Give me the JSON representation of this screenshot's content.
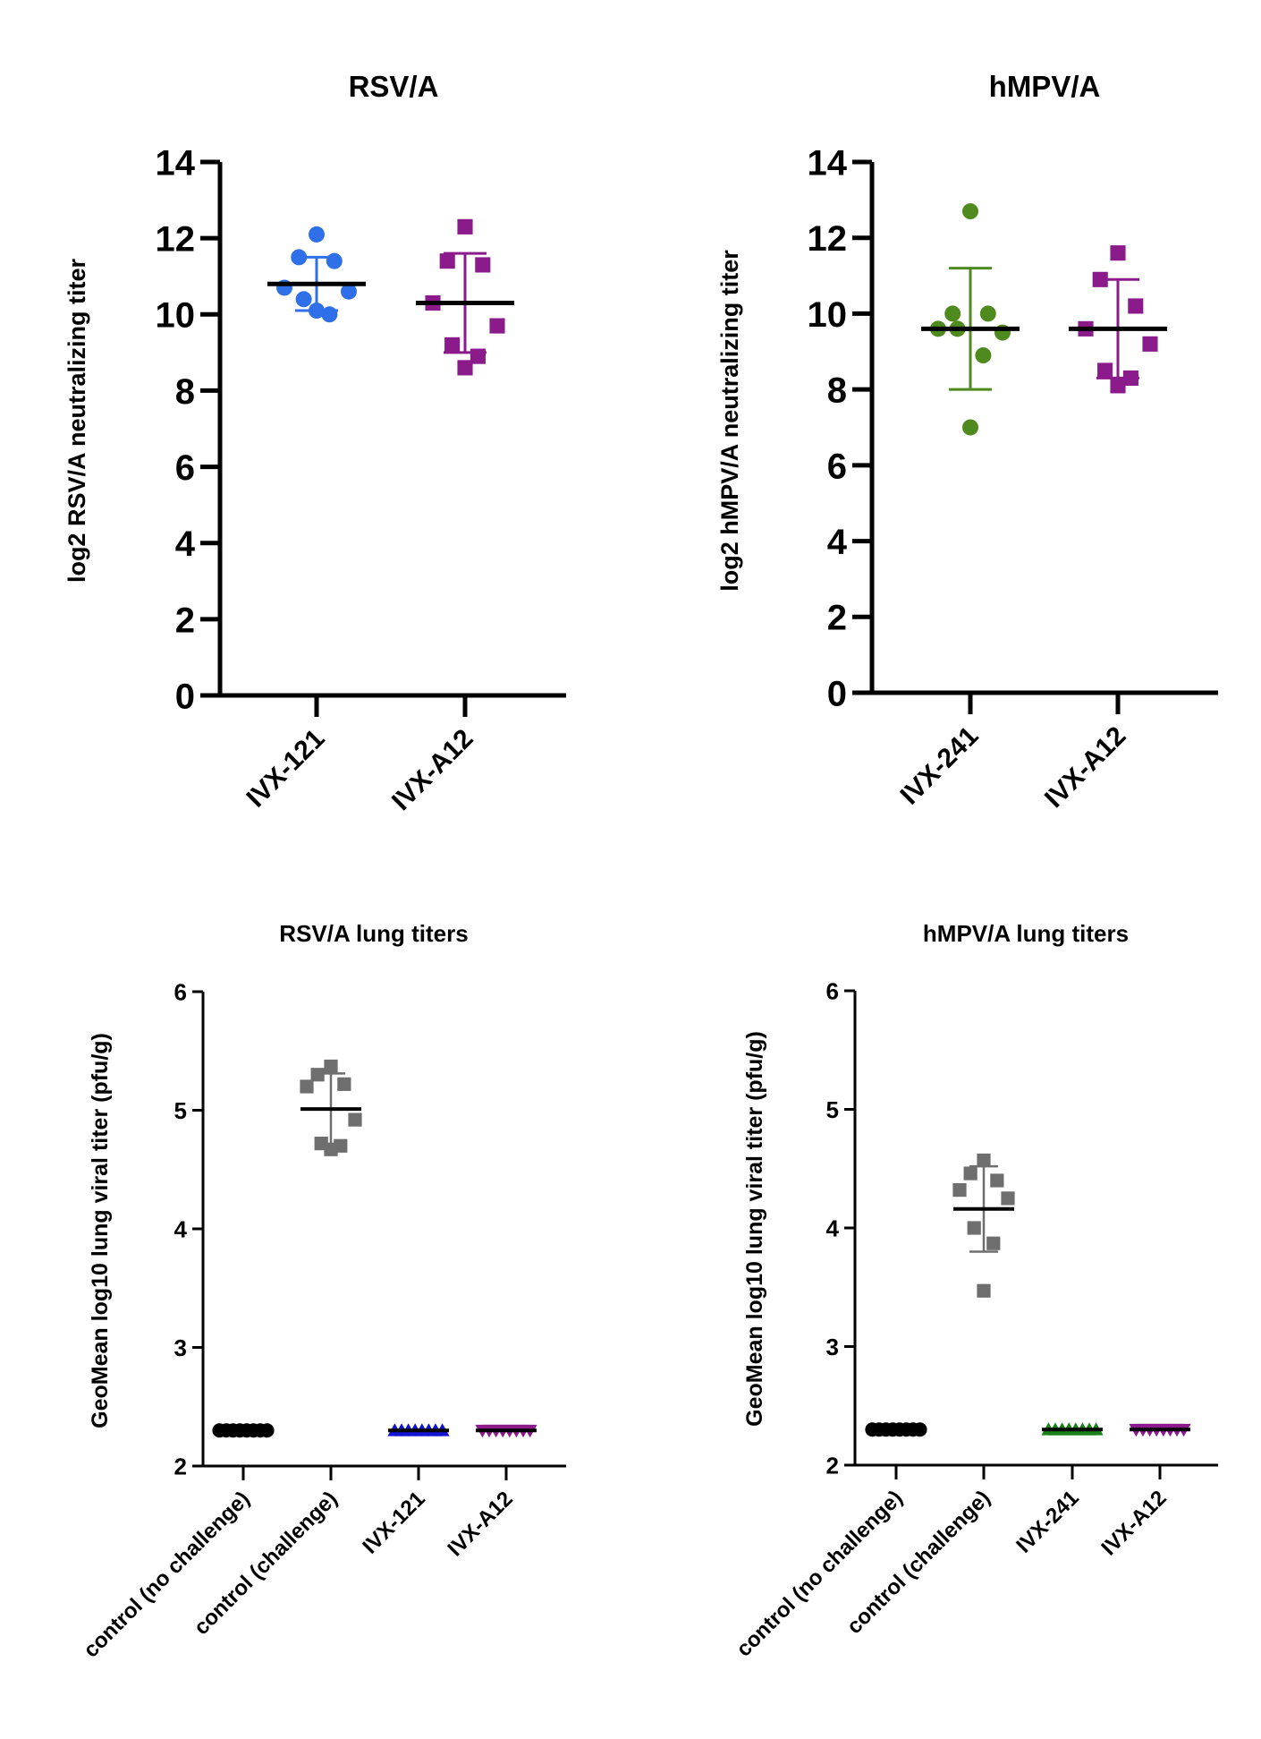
{
  "chart_data": [
    {
      "type": "scatter",
      "title": "RSV/A",
      "xlabel": "",
      "ylabel": "log2  RSV/A neutralizing titer",
      "ylim": [
        0,
        14
      ],
      "yticks": [
        0,
        2,
        4,
        6,
        8,
        10,
        12,
        14
      ],
      "categories": [
        "IVX-121",
        "IVX-A12"
      ],
      "series": [
        {
          "name": "IVX-121",
          "marker": "circle",
          "color": "#2F6FE8",
          "values": [
            12.1,
            11.5,
            11.4,
            10.7,
            10.6,
            10.4,
            10.0,
            10.1
          ],
          "mean": 10.8,
          "sd": 0.7
        },
        {
          "name": "IVX-A12",
          "marker": "square",
          "color": "#8B1A8B",
          "values": [
            12.3,
            11.4,
            11.3,
            10.3,
            9.7,
            9.2,
            8.9,
            8.6
          ],
          "mean": 10.3,
          "sd": 1.3
        }
      ]
    },
    {
      "type": "scatter",
      "title": "hMPV/A",
      "xlabel": "",
      "ylabel": "log2  hMPV/A neutralizing titer",
      "ylim": [
        0,
        14
      ],
      "yticks": [
        0,
        2,
        4,
        6,
        8,
        10,
        12,
        14
      ],
      "categories": [
        "IVX-241",
        "IVX-A12"
      ],
      "series": [
        {
          "name": "IVX-241",
          "marker": "circle",
          "color": "#4F8A1E",
          "values": [
            12.7,
            10.0,
            10.0,
            9.6,
            9.5,
            9.6,
            8.9,
            7.0
          ],
          "mean": 9.6,
          "sd": 1.6
        },
        {
          "name": "IVX-A12",
          "marker": "square",
          "color": "#8B1A8B",
          "values": [
            11.6,
            10.9,
            10.2,
            9.6,
            9.2,
            8.5,
            8.3,
            8.1
          ],
          "mean": 9.6,
          "sd": 1.3
        }
      ]
    },
    {
      "type": "scatter",
      "title": "RSV/A lung titers",
      "xlabel": "",
      "ylabel": "GeoMean log10 lung viral titer (pfu/g)",
      "ylim": [
        2,
        6
      ],
      "yticks": [
        2,
        3,
        4,
        5,
        6
      ],
      "categories": [
        "control (no challenge)",
        "control (challenge)",
        "IVX-121",
        "IVX-A12"
      ],
      "series": [
        {
          "name": "control (no challenge)",
          "marker": "circle",
          "color": "#000000",
          "values": [
            2.3,
            2.3,
            2.3,
            2.3,
            2.3,
            2.3,
            2.3,
            2.3
          ],
          "mean": 2.3,
          "sd": 0
        },
        {
          "name": "control (challenge)",
          "marker": "square",
          "color": "#6E6E6E",
          "values": [
            5.37,
            5.3,
            5.22,
            5.2,
            4.92,
            4.72,
            4.7,
            4.67
          ],
          "mean": 5.01,
          "sd": 0.3
        },
        {
          "name": "IVX-121",
          "marker": "triangle-up",
          "color": "#1414D4",
          "values": [
            2.3,
            2.3,
            2.3,
            2.3,
            2.3,
            2.3,
            2.3,
            2.3
          ],
          "mean": 2.3,
          "sd": 0
        },
        {
          "name": "IVX-A12",
          "marker": "triangle-down",
          "color": "#8B1A8B",
          "values": [
            2.3,
            2.3,
            2.3,
            2.3,
            2.3,
            2.3,
            2.3,
            2.3
          ],
          "mean": 2.3,
          "sd": 0
        }
      ]
    },
    {
      "type": "scatter",
      "title": "hMPV/A lung titers",
      "xlabel": "",
      "ylabel": "GeoMean log10 lung viral titer (pfu/g)",
      "ylim": [
        2,
        6
      ],
      "yticks": [
        2,
        3,
        4,
        5,
        6
      ],
      "categories": [
        "control (no challenge)",
        "control (challenge)",
        "IVX-241",
        "IVX-A12"
      ],
      "series": [
        {
          "name": "control (no challenge)",
          "marker": "circle",
          "color": "#000000",
          "values": [
            2.3,
            2.3,
            2.3,
            2.3,
            2.3,
            2.3,
            2.3,
            2.3
          ],
          "mean": 2.3,
          "sd": 0
        },
        {
          "name": "control (challenge)",
          "marker": "square",
          "color": "#6E6E6E",
          "values": [
            4.57,
            4.46,
            4.4,
            4.32,
            4.25,
            4.0,
            3.87,
            3.47
          ],
          "mean": 4.16,
          "sd": 0.36
        },
        {
          "name": "IVX-241",
          "marker": "triangle-up",
          "color": "#1A801A",
          "values": [
            2.3,
            2.3,
            2.3,
            2.3,
            2.3,
            2.3,
            2.3,
            2.3
          ],
          "mean": 2.3,
          "sd": 0
        },
        {
          "name": "IVX-A12",
          "marker": "triangle-down",
          "color": "#8B1A8B",
          "values": [
            2.3,
            2.3,
            2.3,
            2.3,
            2.3,
            2.3,
            2.3,
            2.3
          ],
          "mean": 2.3,
          "sd": 0
        }
      ]
    }
  ]
}
